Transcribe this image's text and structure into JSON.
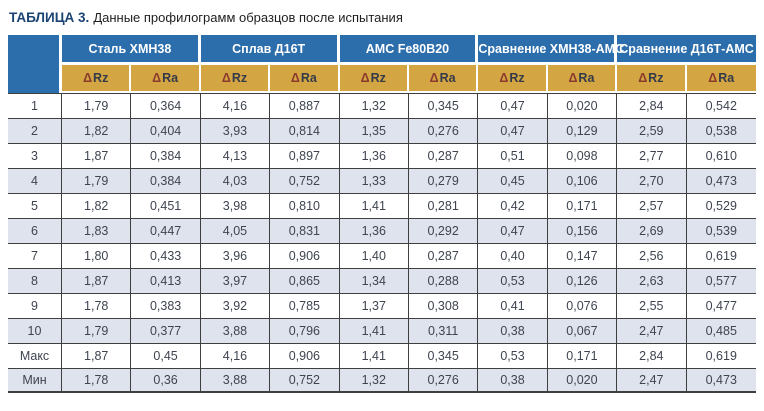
{
  "title": {
    "label": "ТАБЛИЦА 3.",
    "text": "Данные профилограмм образцов после испытания"
  },
  "table": {
    "groups": [
      {
        "label": "Сталь ХМН38"
      },
      {
        "label": "Сплав Д16Т"
      },
      {
        "label": "АМС Fe80B20"
      },
      {
        "label": "Сравнение ХМН38-АМС"
      },
      {
        "label": "Сравнение Д16Т-АМС"
      }
    ],
    "delta": "Δ",
    "sub_columns": [
      "Rz",
      "Ra"
    ],
    "rows": [
      {
        "label": "1",
        "values": [
          "1,79",
          "0,364",
          "4,16",
          "0,887",
          "1,32",
          "0,345",
          "0,47",
          "0,020",
          "2,84",
          "0,542"
        ]
      },
      {
        "label": "2",
        "values": [
          "1,82",
          "0,404",
          "3,93",
          "0,814",
          "1,35",
          "0,276",
          "0,47",
          "0,129",
          "2,59",
          "0,538"
        ]
      },
      {
        "label": "3",
        "values": [
          "1,87",
          "0,384",
          "4,13",
          "0,897",
          "1,36",
          "0,287",
          "0,51",
          "0,098",
          "2,77",
          "0,610"
        ]
      },
      {
        "label": "4",
        "values": [
          "1,79",
          "0,384",
          "4,03",
          "0,752",
          "1,33",
          "0,279",
          "0,45",
          "0,106",
          "2,70",
          "0,473"
        ]
      },
      {
        "label": "5",
        "values": [
          "1,82",
          "0,451",
          "3,98",
          "0,810",
          "1,41",
          "0,281",
          "0,42",
          "0,171",
          "2,57",
          "0,529"
        ]
      },
      {
        "label": "6",
        "values": [
          "1,83",
          "0,447",
          "4,05",
          "0,831",
          "1,36",
          "0,292",
          "0,47",
          "0,156",
          "2,69",
          "0,539"
        ]
      },
      {
        "label": "7",
        "values": [
          "1,80",
          "0,433",
          "3,96",
          "0,906",
          "1,40",
          "0,287",
          "0,40",
          "0,147",
          "2,56",
          "0,619"
        ]
      },
      {
        "label": "8",
        "values": [
          "1,87",
          "0,413",
          "3,97",
          "0,865",
          "1,34",
          "0,288",
          "0,53",
          "0,126",
          "2,63",
          "0,577"
        ]
      },
      {
        "label": "9",
        "values": [
          "1,78",
          "0,383",
          "3,92",
          "0,785",
          "1,37",
          "0,308",
          "0,41",
          "0,076",
          "2,55",
          "0,477"
        ]
      },
      {
        "label": "10",
        "values": [
          "1,79",
          "0,377",
          "3,88",
          "0,796",
          "1,41",
          "0,311",
          "0,38",
          "0,067",
          "2,47",
          "0,485"
        ]
      },
      {
        "label": "Макс",
        "values": [
          "1,87",
          "0,45",
          "4,16",
          "0,906",
          "1,41",
          "0,345",
          "0,53",
          "0,171",
          "2,84",
          "0,619"
        ]
      },
      {
        "label": "Мин",
        "values": [
          "1,78",
          "0,36",
          "3,88",
          "0,752",
          "1,32",
          "0,276",
          "0,38",
          "0,020",
          "2,47",
          "0,473"
        ]
      }
    ]
  },
  "colors": {
    "blue": "#2c6dab",
    "gold": "#d4a643",
    "stripe": "#dfe3ed",
    "border": "#3f3f3f",
    "text": "#3e4450",
    "delta": "#8a3a2c",
    "subtext": "#333b49",
    "caption_label": "#1b4373",
    "caption_text": "#1f1f1f"
  }
}
